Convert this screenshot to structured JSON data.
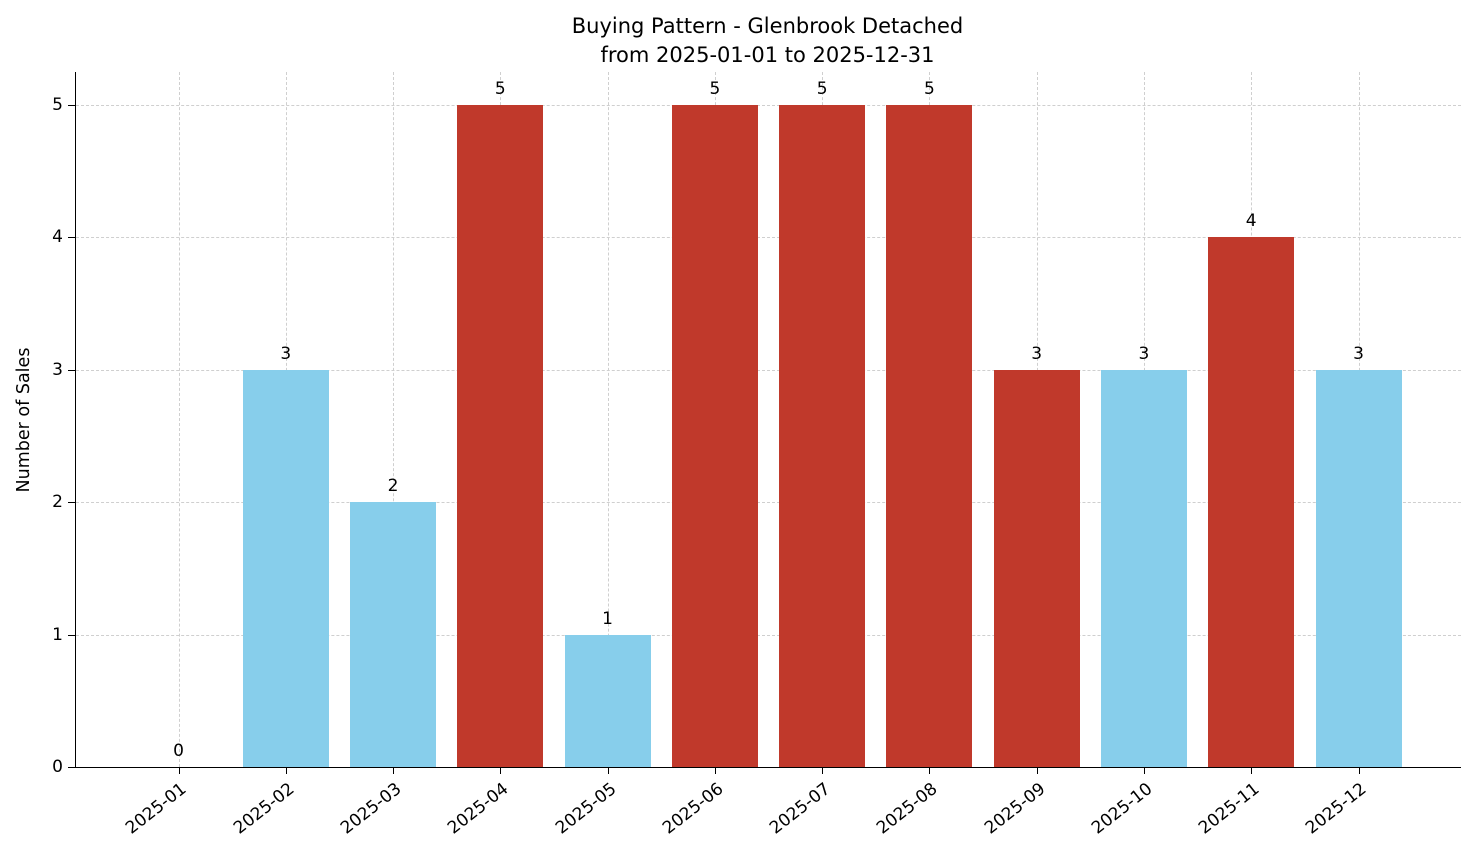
{
  "figure": {
    "title_line1": "Buying Pattern - Glenbrook Detached",
    "title_line2": "from 2025-01-01 to 2025-12-31",
    "ylabel": "Number of Sales"
  },
  "chart_data": {
    "type": "bar",
    "title": "Buying Pattern - Glenbrook Detached from 2025-01-01 to 2025-12-31",
    "xlabel": "",
    "ylabel": "Number of Sales",
    "categories": [
      "2025-01",
      "2025-02",
      "2025-03",
      "2025-04",
      "2025-05",
      "2025-06",
      "2025-07",
      "2025-08",
      "2025-09",
      "2025-10",
      "2025-11",
      "2025-12"
    ],
    "values": [
      0,
      3,
      2,
      5,
      1,
      5,
      5,
      5,
      3,
      3,
      4,
      3
    ],
    "value_labels": [
      "0",
      "3",
      "2",
      "5",
      "1",
      "5",
      "5",
      "5",
      "3",
      "3",
      "4",
      "3"
    ],
    "bar_colors": [
      "#87CEEB",
      "#87CEEB",
      "#87CEEB",
      "#C0392B",
      "#87CEEB",
      "#C0392B",
      "#C0392B",
      "#C0392B",
      "#C0392B",
      "#87CEEB",
      "#C0392B",
      "#87CEEB"
    ],
    "colors": {
      "blue_bar": "#87CEEB",
      "red_bar": "#C0392B",
      "grid": "#cfcfcf",
      "text": "#000000"
    },
    "ylim": [
      0,
      5.25
    ],
    "yticks": [
      0,
      1,
      2,
      3,
      4,
      5
    ],
    "grid": true,
    "legend_position": "none"
  }
}
